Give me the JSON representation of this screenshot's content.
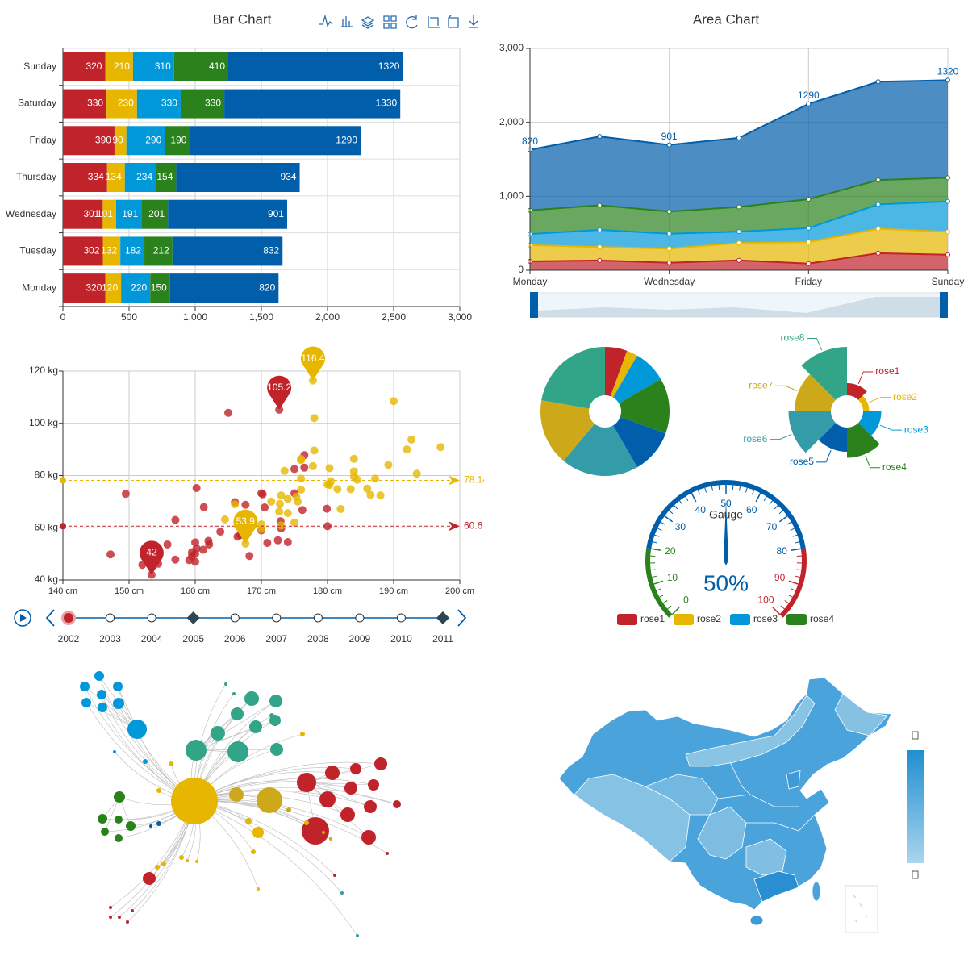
{
  "chart_data": [
    {
      "type": "bar",
      "orientation": "horizontal",
      "stacked": true,
      "title": "Bar Chart",
      "categories": [
        "Monday",
        "Tuesday",
        "Wednesday",
        "Thursday",
        "Friday",
        "Saturday",
        "Sunday"
      ],
      "series": [
        {
          "color": "#c1232b",
          "values": [
            320,
            302,
            301,
            334,
            390,
            330,
            320
          ]
        },
        {
          "color": "#e6b600",
          "values": [
            120,
            132,
            101,
            134,
            90,
            230,
            210
          ]
        },
        {
          "color": "#0098d9",
          "values": [
            220,
            182,
            191,
            234,
            290,
            330,
            310
          ]
        },
        {
          "color": "#2b821d",
          "values": [
            150,
            212,
            201,
            154,
            190,
            330,
            410
          ]
        },
        {
          "color": "#005eaa",
          "values": [
            820,
            832,
            901,
            934,
            1290,
            1330,
            1320
          ]
        }
      ],
      "xlim": [
        0,
        3000
      ],
      "xticks": [
        0,
        500,
        {
          "value": 1000,
          "label": "1,000"
        },
        {
          "value": 1500,
          "label": "1,500"
        },
        {
          "value": 2000,
          "label": "2,000"
        },
        {
          "value": 2500,
          "label": "2,500"
        },
        {
          "value": 3000,
          "label": "3,000"
        }
      ],
      "grid": true
    },
    {
      "type": "area",
      "stacked": true,
      "title": "Area Chart",
      "categories": [
        "Monday",
        null,
        "Wednesday",
        null,
        "Friday",
        null,
        "Sunday"
      ],
      "series": [
        {
          "color": "#c1232b",
          "values": [
            120,
            132,
            101,
            134,
            90,
            230,
            210
          ]
        },
        {
          "color": "#e6b600",
          "values": [
            220,
            182,
            191,
            234,
            290,
            330,
            310
          ]
        },
        {
          "color": "#0098d9",
          "values": [
            150,
            232,
            201,
            154,
            190,
            330,
            410
          ]
        },
        {
          "color": "#2b821d",
          "values": [
            320,
            332,
            301,
            334,
            390,
            330,
            320
          ]
        },
        {
          "color": "#005eaa",
          "values": [
            820,
            932,
            901,
            934,
            1290,
            1330,
            1320
          ],
          "value_labels": [
            "820",
            null,
            "901",
            null,
            "1290",
            null,
            "1320"
          ]
        }
      ],
      "ylim": [
        0,
        3000
      ],
      "yticks": [
        0,
        {
          "value": 1000,
          "label": "1,000"
        },
        {
          "value": 2000,
          "label": "2,000"
        },
        {
          "value": 3000,
          "label": "3,000"
        }
      ],
      "grid": true
    },
    {
      "type": "scatter",
      "series": [
        {
          "color": "#c1232b",
          "x": [
            161.2,
            167.5,
            159.5,
            157,
            155.8,
            170,
            159.1,
            166,
            176.2,
            160.2,
            172.5,
            170.9,
            172.9,
            153.4,
            160,
            147.2,
            168.2,
            175,
            157,
            167.6,
            159.5,
            175,
            166.8,
            176.5,
            170.2,
            174,
            173,
            179.9,
            170.5,
            160,
            154.4,
            162,
            176.5,
            160,
            152,
            162.1,
            170,
            160.2,
            161.3,
            166.4,
            172.7,
            165,
            149.5,
            163.8,
            180
          ],
          "values": [
            51.6,
            59,
            49.2,
            63,
            53.6,
            59,
            47.6,
            69.8,
            66.8,
            75.2,
            55.2,
            54.2,
            62.5,
            42,
            50,
            49.8,
            49.2,
            73.2,
            47.8,
            68.8,
            50.6,
            82.5,
            57.2,
            87.8,
            72.8,
            54.5,
            59.8,
            67.3,
            67.8,
            47,
            46.2,
            55,
            83,
            54.4,
            45.8,
            53.6,
            73.2,
            52.1,
            67.9,
            56.6,
            105.2,
            104,
            73,
            58.5,
            60.6
          ],
          "mark_points": [
            {
              "x": 172.7,
              "value": 105.2
            },
            {
              "x": 153.4,
              "value": 42
            }
          ],
          "mark_line": 60.6
        },
        {
          "color": "#e6b600",
          "x": [
            174,
            175.3,
            193.5,
            186.5,
            187.2,
            181.5,
            184,
            184.5,
            175,
            184,
            180,
            177.8,
            192,
            176,
            174,
            184,
            192.7,
            171.5,
            173,
            176,
            176,
            180.5,
            172.7,
            176,
            173.5,
            178,
            180.3,
            180.3,
            164.5,
            173,
            183.5,
            175.5,
            188,
            189.2,
            172.8,
            170,
            182,
            170,
            177.8,
            167.6,
            190,
            197.1,
            166,
            178,
            186
          ],
          "values": [
            65.6,
            71.8,
            80.7,
            72.6,
            78.8,
            74.8,
            86.4,
            78.4,
            62,
            81.6,
            76.6,
            83.6,
            90,
            74.6,
            71,
            79.6,
            93.8,
            70,
            72.4,
            85.9,
            78.8,
            77.8,
            66.2,
            86.4,
            81.8,
            89.6,
            82.8,
            76.4,
            63.2,
            60.9,
            74.8,
            70,
            72.4,
            84.1,
            69.1,
            59.5,
            67.2,
            61.3,
            116.4,
            53.9,
            108.5,
            90.9,
            69,
            102,
            75
          ],
          "mark_points": [
            {
              "x": 177.8,
              "value": 116.4
            },
            {
              "x": 167.6,
              "value": 53.9
            }
          ],
          "mark_line": 78.14
        }
      ],
      "xlim": [
        140,
        200
      ],
      "xticks": [
        {
          "value": 140,
          "label": "140 cm"
        },
        {
          "value": 150,
          "label": "150 cm"
        },
        {
          "value": 160,
          "label": "160 cm"
        },
        {
          "value": 170,
          "label": "170 cm"
        },
        {
          "value": 180,
          "label": "180 cm"
        },
        {
          "value": 190,
          "label": "190 cm"
        },
        {
          "value": 200,
          "label": "200 cm"
        }
      ],
      "ylim": [
        40,
        120
      ],
      "yticks": [
        {
          "value": 40,
          "label": "40 kg"
        },
        {
          "value": 60,
          "label": "60 kg"
        },
        {
          "value": 80,
          "label": "80 kg"
        },
        {
          "value": 100,
          "label": "100 kg"
        },
        {
          "value": 120,
          "label": "120 kg"
        }
      ],
      "grid": true,
      "timeline": [
        2002,
        2003,
        2004,
        2005,
        2006,
        2007,
        2008,
        2009,
        2010,
        2011
      ]
    },
    {
      "type": "pie",
      "categories": [
        "rose1",
        "rose2",
        "rose3",
        "rose4",
        null,
        null,
        null,
        null
      ],
      "values": [
        10,
        5,
        15,
        25,
        20,
        35,
        30,
        40
      ],
      "colors": [
        "#c1232b",
        "#e6b600",
        "#0098d9",
        "#2b821d",
        "#005eaa",
        "#339ca8",
        "#cda819",
        "#32a487"
      ],
      "legend": "bottom"
    },
    {
      "type": "rose",
      "categories": [
        "rose1",
        "rose2",
        "rose3",
        "rose4",
        "rose5",
        "rose6",
        "rose7",
        "rose8"
      ],
      "values": [
        10,
        5,
        15,
        25,
        20,
        35,
        30,
        40
      ],
      "colors": [
        "#c1232b",
        "#e6b600",
        "#0098d9",
        "#2b821d",
        "#005eaa",
        "#339ca8",
        "#cda819",
        "#32a487"
      ]
    },
    {
      "type": "gauge",
      "title": "Gauge",
      "values": [
        50
      ],
      "value_labels": [
        "50%"
      ],
      "ylim": [
        0,
        100
      ],
      "yticks": [
        0,
        10,
        20,
        30,
        40,
        50,
        60,
        70,
        80,
        90,
        100
      ],
      "bands": [
        {
          "value": 20,
          "color": "#2b821d"
        },
        {
          "value": 80,
          "color": "#005eaa"
        },
        {
          "value": 100,
          "color": "#c1232b"
        }
      ]
    }
  ]
}
